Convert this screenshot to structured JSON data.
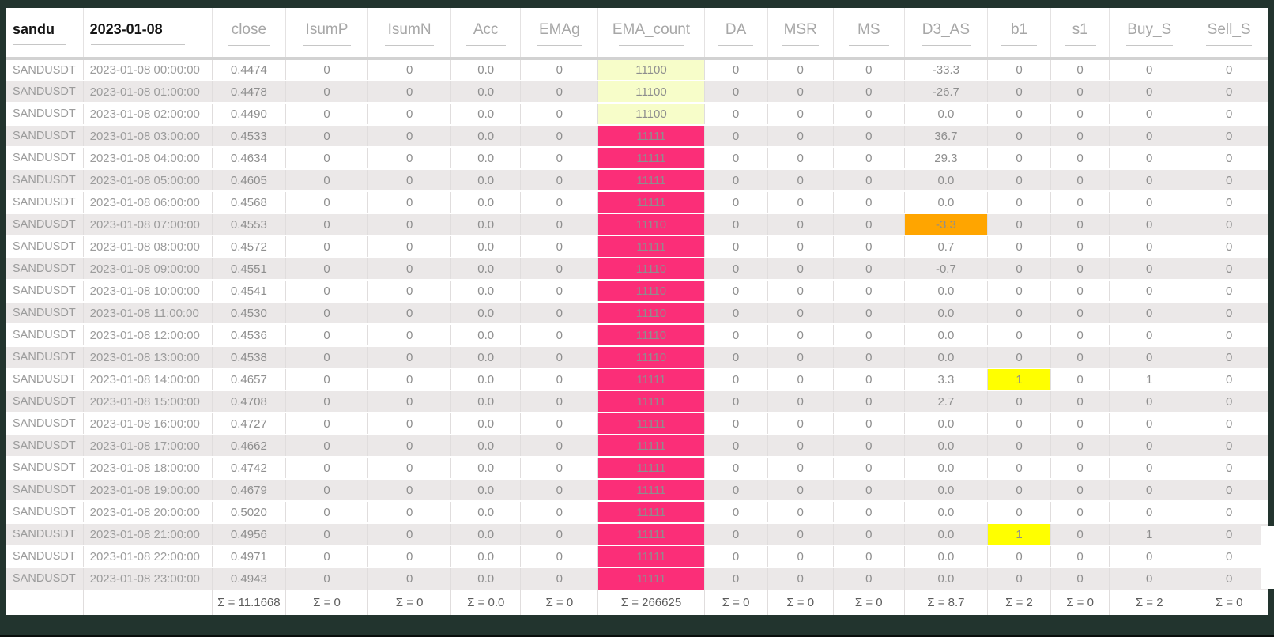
{
  "colors": {
    "frame": "#22342e",
    "pink": "#fb2e78",
    "paleyellow": "#f7fdc9",
    "orange": "#ffa500",
    "yellow": "#ffff00",
    "even_row": "#ebe8e8"
  },
  "table": {
    "col_keys": [
      "symbol",
      "timestamp",
      "close",
      "isump",
      "isumn",
      "acc",
      "emag",
      "ema-count",
      "da",
      "msr",
      "ms",
      "d3-as",
      "b1",
      "s1",
      "buy-s",
      "sell-s"
    ],
    "headers": [
      {
        "label": "sandu",
        "variant": "dark"
      },
      {
        "label": "2023-01-08",
        "variant": "dark"
      },
      {
        "label": "close"
      },
      {
        "label": "IsumP"
      },
      {
        "label": "IsumN"
      },
      {
        "label": "Acc"
      },
      {
        "label": "EMAg"
      },
      {
        "label": "EMA_count"
      },
      {
        "label": "DA"
      },
      {
        "label": "MSR"
      },
      {
        "label": "MS"
      },
      {
        "label": "D3_AS"
      },
      {
        "label": "b1"
      },
      {
        "label": "s1"
      },
      {
        "label": "Buy_S"
      },
      {
        "label": "Sell_S"
      }
    ],
    "rows": [
      [
        "SANDUSDT",
        "2023-01-08 00:00:00",
        "0.4474",
        "0",
        "0",
        "0.0",
        "0",
        {
          "v": "11100",
          "bg": "paleyellow"
        },
        "0",
        "0",
        "0",
        "-33.3",
        "0",
        "0",
        "0",
        "0"
      ],
      [
        "SANDUSDT",
        "2023-01-08 01:00:00",
        "0.4478",
        "0",
        "0",
        "0.0",
        "0",
        {
          "v": "11100",
          "bg": "paleyellow"
        },
        "0",
        "0",
        "0",
        "-26.7",
        "0",
        "0",
        "0",
        "0"
      ],
      [
        "SANDUSDT",
        "2023-01-08 02:00:00",
        "0.4490",
        "0",
        "0",
        "0.0",
        "0",
        {
          "v": "11100",
          "bg": "paleyellow"
        },
        "0",
        "0",
        "0",
        "0.0",
        "0",
        "0",
        "0",
        "0"
      ],
      [
        "SANDUSDT",
        "2023-01-08 03:00:00",
        "0.4533",
        "0",
        "0",
        "0.0",
        "0",
        {
          "v": "11111",
          "bg": "pink"
        },
        "0",
        "0",
        "0",
        "36.7",
        "0",
        "0",
        "0",
        "0"
      ],
      [
        "SANDUSDT",
        "2023-01-08 04:00:00",
        "0.4634",
        "0",
        "0",
        "0.0",
        "0",
        {
          "v": "11111",
          "bg": "pink"
        },
        "0",
        "0",
        "0",
        "29.3",
        "0",
        "0",
        "0",
        "0"
      ],
      [
        "SANDUSDT",
        "2023-01-08 05:00:00",
        "0.4605",
        "0",
        "0",
        "0.0",
        "0",
        {
          "v": "11111",
          "bg": "pink"
        },
        "0",
        "0",
        "0",
        "0.0",
        "0",
        "0",
        "0",
        "0"
      ],
      [
        "SANDUSDT",
        "2023-01-08 06:00:00",
        "0.4568",
        "0",
        "0",
        "0.0",
        "0",
        {
          "v": "11111",
          "bg": "pink"
        },
        "0",
        "0",
        "0",
        "0.0",
        "0",
        "0",
        "0",
        "0"
      ],
      [
        "SANDUSDT",
        "2023-01-08 07:00:00",
        "0.4553",
        "0",
        "0",
        "0.0",
        "0",
        {
          "v": "11110",
          "bg": "pink"
        },
        "0",
        "0",
        "0",
        {
          "v": "-3.3",
          "bg": "orange"
        },
        "0",
        "0",
        "0",
        "0"
      ],
      [
        "SANDUSDT",
        "2023-01-08 08:00:00",
        "0.4572",
        "0",
        "0",
        "0.0",
        "0",
        {
          "v": "11111",
          "bg": "pink"
        },
        "0",
        "0",
        "0",
        "0.7",
        "0",
        "0",
        "0",
        "0"
      ],
      [
        "SANDUSDT",
        "2023-01-08 09:00:00",
        "0.4551",
        "0",
        "0",
        "0.0",
        "0",
        {
          "v": "11110",
          "bg": "pink"
        },
        "0",
        "0",
        "0",
        "-0.7",
        "0",
        "0",
        "0",
        "0"
      ],
      [
        "SANDUSDT",
        "2023-01-08 10:00:00",
        "0.4541",
        "0",
        "0",
        "0.0",
        "0",
        {
          "v": "11110",
          "bg": "pink"
        },
        "0",
        "0",
        "0",
        "0.0",
        "0",
        "0",
        "0",
        "0"
      ],
      [
        "SANDUSDT",
        "2023-01-08 11:00:00",
        "0.4530",
        "0",
        "0",
        "0.0",
        "0",
        {
          "v": "11110",
          "bg": "pink"
        },
        "0",
        "0",
        "0",
        "0.0",
        "0",
        "0",
        "0",
        "0"
      ],
      [
        "SANDUSDT",
        "2023-01-08 12:00:00",
        "0.4536",
        "0",
        "0",
        "0.0",
        "0",
        {
          "v": "11110",
          "bg": "pink"
        },
        "0",
        "0",
        "0",
        "0.0",
        "0",
        "0",
        "0",
        "0"
      ],
      [
        "SANDUSDT",
        "2023-01-08 13:00:00",
        "0.4538",
        "0",
        "0",
        "0.0",
        "0",
        {
          "v": "11110",
          "bg": "pink"
        },
        "0",
        "0",
        "0",
        "0.0",
        "0",
        "0",
        "0",
        "0"
      ],
      [
        "SANDUSDT",
        "2023-01-08 14:00:00",
        "0.4657",
        "0",
        "0",
        "0.0",
        "0",
        {
          "v": "11111",
          "bg": "pink"
        },
        "0",
        "0",
        "0",
        "3.3",
        {
          "v": "1",
          "bg": "yellow"
        },
        "0",
        "1",
        "0"
      ],
      [
        "SANDUSDT",
        "2023-01-08 15:00:00",
        "0.4708",
        "0",
        "0",
        "0.0",
        "0",
        {
          "v": "11111",
          "bg": "pink"
        },
        "0",
        "0",
        "0",
        "2.7",
        "0",
        "0",
        "0",
        "0"
      ],
      [
        "SANDUSDT",
        "2023-01-08 16:00:00",
        "0.4727",
        "0",
        "0",
        "0.0",
        "0",
        {
          "v": "11111",
          "bg": "pink"
        },
        "0",
        "0",
        "0",
        "0.0",
        "0",
        "0",
        "0",
        "0"
      ],
      [
        "SANDUSDT",
        "2023-01-08 17:00:00",
        "0.4662",
        "0",
        "0",
        "0.0",
        "0",
        {
          "v": "11111",
          "bg": "pink"
        },
        "0",
        "0",
        "0",
        "0.0",
        "0",
        "0",
        "0",
        "0"
      ],
      [
        "SANDUSDT",
        "2023-01-08 18:00:00",
        "0.4742",
        "0",
        "0",
        "0.0",
        "0",
        {
          "v": "11111",
          "bg": "pink"
        },
        "0",
        "0",
        "0",
        "0.0",
        "0",
        "0",
        "0",
        "0"
      ],
      [
        "SANDUSDT",
        "2023-01-08 19:00:00",
        "0.4679",
        "0",
        "0",
        "0.0",
        "0",
        {
          "v": "11111",
          "bg": "pink"
        },
        "0",
        "0",
        "0",
        "0.0",
        "0",
        "0",
        "0",
        "0"
      ],
      [
        "SANDUSDT",
        "2023-01-08 20:00:00",
        "0.5020",
        "0",
        "0",
        "0.0",
        "0",
        {
          "v": "11111",
          "bg": "pink"
        },
        "0",
        "0",
        "0",
        "0.0",
        "0",
        "0",
        "0",
        "0"
      ],
      [
        "SANDUSDT",
        "2023-01-08 21:00:00",
        "0.4956",
        "0",
        "0",
        "0.0",
        "0",
        {
          "v": "11111",
          "bg": "pink"
        },
        "0",
        "0",
        "0",
        "0.0",
        {
          "v": "1",
          "bg": "yellow"
        },
        "0",
        "1",
        "0"
      ],
      [
        "SANDUSDT",
        "2023-01-08 22:00:00",
        "0.4971",
        "0",
        "0",
        "0.0",
        "0",
        {
          "v": "11111",
          "bg": "pink"
        },
        "0",
        "0",
        "0",
        "0.0",
        "0",
        "0",
        "0",
        "0"
      ],
      [
        "SANDUSDT",
        "2023-01-08 23:00:00",
        "0.4943",
        "0",
        "0",
        "0.0",
        "0",
        {
          "v": "11111",
          "bg": "pink"
        },
        "0",
        "0",
        "0",
        "0.0",
        "0",
        "0",
        "0",
        "0"
      ]
    ],
    "footer": [
      "",
      "",
      "Σ = 11.1668",
      "Σ = 0",
      "Σ = 0",
      "Σ = 0.0",
      "Σ = 0",
      "Σ = 266625",
      "Σ = 0",
      "Σ = 0",
      "Σ = 0",
      "Σ = 8.7",
      "Σ = 2",
      "Σ = 0",
      "Σ = 2",
      "Σ = 0"
    ]
  }
}
